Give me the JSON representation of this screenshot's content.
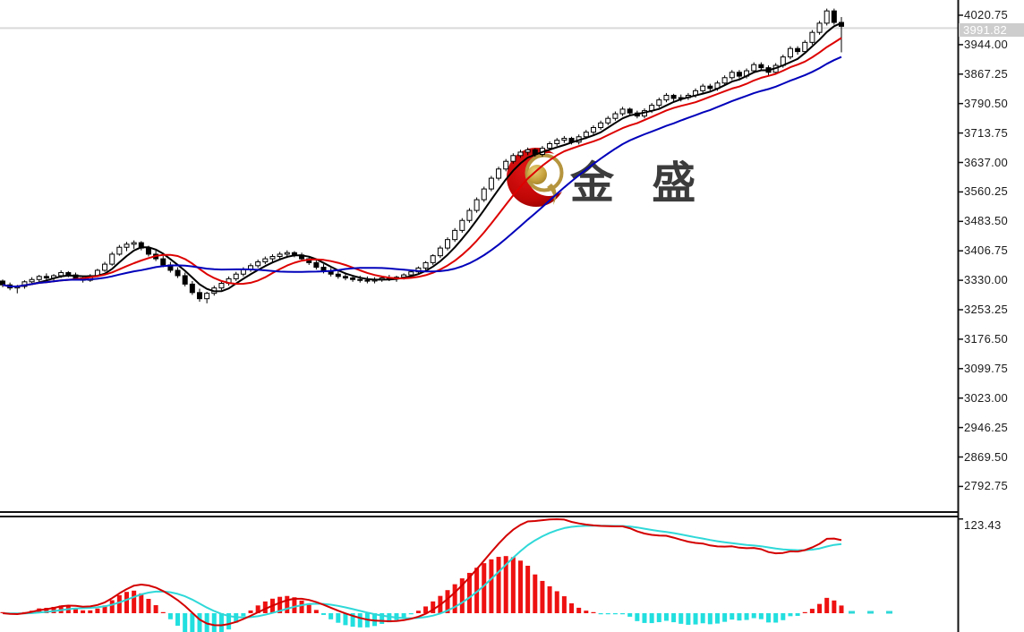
{
  "watermark": {
    "text": "金 盛"
  },
  "price_axis": {
    "last_price": "3991.82",
    "ticks": [
      "4020.75",
      "3944.00",
      "3867.25",
      "3790.50",
      "3713.75",
      "3637.00",
      "3560.25",
      "3483.50",
      "3406.75",
      "3330.00",
      "3253.25",
      "3176.50",
      "3099.75",
      "3023.00",
      "2946.25",
      "2869.50",
      "2792.75"
    ]
  },
  "indicator_axis": {
    "label": "123.43"
  },
  "colors": {
    "up_body": "#ffffff",
    "down_body": "#000000",
    "candle_border": "#000000",
    "ma_fast": "#000000",
    "ma_mid": "#dd0000",
    "ma_slow": "#0000bb",
    "macd_diff": "#d40000",
    "macd_dea": "#2fd8d8",
    "hist_pos": "#ee1111",
    "hist_neg": "#22dfdf",
    "price_line": "#d9d9d9",
    "badge_bg": "#cdcdcd",
    "badge_text": "#ffffff",
    "axis_line": "#111111",
    "label_text": "#1b1b1b",
    "logo_red": "#c00606",
    "logo_gold": "#b5953e",
    "watermark_text_color": "#3c3c3c"
  },
  "chart_data": {
    "type": "candlestick",
    "title": "",
    "grid": "off",
    "legend": "off",
    "last_price": 3991.82,
    "y_ticks_main": [
      4020.75,
      3944.0,
      3867.25,
      3790.5,
      3713.75,
      3637.0,
      3560.25,
      3483.5,
      3406.75,
      3330.0,
      3253.25,
      3176.5,
      3099.75,
      3023.0,
      2946.25,
      2869.5,
      2792.75
    ],
    "ylim_main": [
      2720,
      4061
    ],
    "moving_averages": [
      {
        "name": "ma-fast",
        "period": 5,
        "color": "#000000"
      },
      {
        "name": "ma-mid",
        "period": 10,
        "color": "#dd0000"
      },
      {
        "name": "ma-slow",
        "period": 20,
        "color": "#0000bb"
      }
    ],
    "indicator": {
      "type": "MACD",
      "fast": 12,
      "slow": 26,
      "signal": 9,
      "max_tick": 123.43,
      "diff_color": "#d40000",
      "dea_color": "#2fd8d8",
      "hist_pos_color": "#ee1111",
      "hist_neg_color": "#22dfdf"
    },
    "ohlc": [
      [
        3328,
        3332,
        3312,
        3318
      ],
      [
        3318,
        3324,
        3304,
        3310
      ],
      [
        3310,
        3318,
        3296,
        3314
      ],
      [
        3314,
        3330,
        3308,
        3326
      ],
      [
        3326,
        3338,
        3318,
        3332
      ],
      [
        3332,
        3344,
        3326,
        3340
      ],
      [
        3340,
        3348,
        3330,
        3336
      ],
      [
        3336,
        3346,
        3328,
        3342
      ],
      [
        3342,
        3356,
        3336,
        3350
      ],
      [
        3350,
        3354,
        3338,
        3344
      ],
      [
        3344,
        3350,
        3332,
        3336
      ],
      [
        3336,
        3342,
        3324,
        3330
      ],
      [
        3330,
        3346,
        3326,
        3342
      ],
      [
        3342,
        3360,
        3338,
        3356
      ],
      [
        3356,
        3378,
        3352,
        3372
      ],
      [
        3372,
        3404,
        3368,
        3398
      ],
      [
        3398,
        3422,
        3394,
        3416
      ],
      [
        3416,
        3430,
        3406,
        3424
      ],
      [
        3424,
        3434,
        3412,
        3428
      ],
      [
        3428,
        3432,
        3408,
        3414
      ],
      [
        3414,
        3420,
        3392,
        3398
      ],
      [
        3398,
        3408,
        3380,
        3386
      ],
      [
        3386,
        3394,
        3364,
        3370
      ],
      [
        3370,
        3378,
        3350,
        3356
      ],
      [
        3356,
        3364,
        3336,
        3342
      ],
      [
        3342,
        3350,
        3314,
        3320
      ],
      [
        3320,
        3328,
        3292,
        3298
      ],
      [
        3298,
        3308,
        3274,
        3282
      ],
      [
        3282,
        3300,
        3270,
        3296
      ],
      [
        3296,
        3316,
        3290,
        3310
      ],
      [
        3310,
        3328,
        3304,
        3322
      ],
      [
        3322,
        3340,
        3316,
        3334
      ],
      [
        3334,
        3352,
        3328,
        3346
      ],
      [
        3346,
        3364,
        3340,
        3358
      ],
      [
        3358,
        3374,
        3352,
        3368
      ],
      [
        3368,
        3384,
        3362,
        3378
      ],
      [
        3378,
        3392,
        3372,
        3386
      ],
      [
        3386,
        3398,
        3378,
        3392
      ],
      [
        3392,
        3404,
        3384,
        3398
      ],
      [
        3398,
        3408,
        3388,
        3402
      ],
      [
        3402,
        3406,
        3390,
        3396
      ],
      [
        3396,
        3402,
        3380,
        3386
      ],
      [
        3386,
        3392,
        3370,
        3376
      ],
      [
        3376,
        3384,
        3358,
        3364
      ],
      [
        3364,
        3372,
        3348,
        3354
      ],
      [
        3354,
        3362,
        3340,
        3346
      ],
      [
        3346,
        3354,
        3334,
        3340
      ],
      [
        3340,
        3350,
        3330,
        3336
      ],
      [
        3336,
        3344,
        3326,
        3332
      ],
      [
        3332,
        3342,
        3324,
        3330
      ],
      [
        3330,
        3340,
        3322,
        3328
      ],
      [
        3328,
        3338,
        3322,
        3332
      ],
      [
        3332,
        3342,
        3326,
        3336
      ],
      [
        3336,
        3344,
        3328,
        3334
      ],
      [
        3334,
        3342,
        3326,
        3338
      ],
      [
        3338,
        3348,
        3332,
        3344
      ],
      [
        3344,
        3356,
        3338,
        3352
      ],
      [
        3352,
        3366,
        3346,
        3362
      ],
      [
        3362,
        3380,
        3356,
        3376
      ],
      [
        3376,
        3398,
        3370,
        3394
      ],
      [
        3394,
        3420,
        3388,
        3414
      ],
      [
        3414,
        3442,
        3408,
        3436
      ],
      [
        3436,
        3466,
        3430,
        3460
      ],
      [
        3460,
        3492,
        3454,
        3486
      ],
      [
        3486,
        3518,
        3480,
        3512
      ],
      [
        3512,
        3546,
        3506,
        3540
      ],
      [
        3540,
        3574,
        3534,
        3568
      ],
      [
        3568,
        3602,
        3562,
        3596
      ],
      [
        3596,
        3626,
        3590,
        3620
      ],
      [
        3620,
        3646,
        3614,
        3640
      ],
      [
        3640,
        3661,
        3634,
        3655
      ],
      [
        3655,
        3670,
        3649,
        3664
      ],
      [
        3664,
        3676,
        3656,
        3670
      ],
      [
        3670,
        3674,
        3652,
        3658
      ],
      [
        3658,
        3680,
        3652,
        3674
      ],
      [
        3674,
        3692,
        3668,
        3686
      ],
      [
        3686,
        3701,
        3680,
        3695
      ],
      [
        3695,
        3706,
        3688,
        3700
      ],
      [
        3700,
        3704,
        3684,
        3690
      ],
      [
        3690,
        3710,
        3684,
        3704
      ],
      [
        3704,
        3722,
        3698,
        3716
      ],
      [
        3716,
        3734,
        3710,
        3728
      ],
      [
        3728,
        3746,
        3722,
        3740
      ],
      [
        3740,
        3758,
        3734,
        3752
      ],
      [
        3752,
        3770,
        3746,
        3764
      ],
      [
        3764,
        3782,
        3758,
        3776
      ],
      [
        3776,
        3780,
        3760,
        3766
      ],
      [
        3766,
        3772,
        3752,
        3758
      ],
      [
        3758,
        3778,
        3752,
        3772
      ],
      [
        3772,
        3792,
        3766,
        3786
      ],
      [
        3786,
        3806,
        3780,
        3800
      ],
      [
        3800,
        3818,
        3794,
        3812
      ],
      [
        3812,
        3816,
        3796,
        3804
      ],
      [
        3804,
        3814,
        3796,
        3806
      ],
      [
        3806,
        3818,
        3800,
        3812
      ],
      [
        3812,
        3830,
        3806,
        3824
      ],
      [
        3824,
        3842,
        3818,
        3836
      ],
      [
        3836,
        3842,
        3824,
        3830
      ],
      [
        3830,
        3850,
        3824,
        3844
      ],
      [
        3844,
        3864,
        3838,
        3858
      ],
      [
        3858,
        3878,
        3852,
        3872
      ],
      [
        3872,
        3878,
        3856,
        3862
      ],
      [
        3862,
        3882,
        3856,
        3876
      ],
      [
        3876,
        3898,
        3870,
        3892
      ],
      [
        3892,
        3898,
        3878,
        3884
      ],
      [
        3884,
        3890,
        3864,
        3872
      ],
      [
        3872,
        3896,
        3866,
        3890
      ],
      [
        3890,
        3918,
        3884,
        3912
      ],
      [
        3912,
        3940,
        3906,
        3934
      ],
      [
        3934,
        3940,
        3918,
        3926
      ],
      [
        3926,
        3956,
        3920,
        3950
      ],
      [
        3950,
        3982,
        3944,
        3976
      ],
      [
        3976,
        4006,
        3970,
        4000
      ],
      [
        4000,
        4038,
        3994,
        4032
      ],
      [
        4032,
        4038,
        3996,
        4002
      ],
      [
        4002,
        4016,
        3924,
        3991.82
      ]
    ]
  }
}
